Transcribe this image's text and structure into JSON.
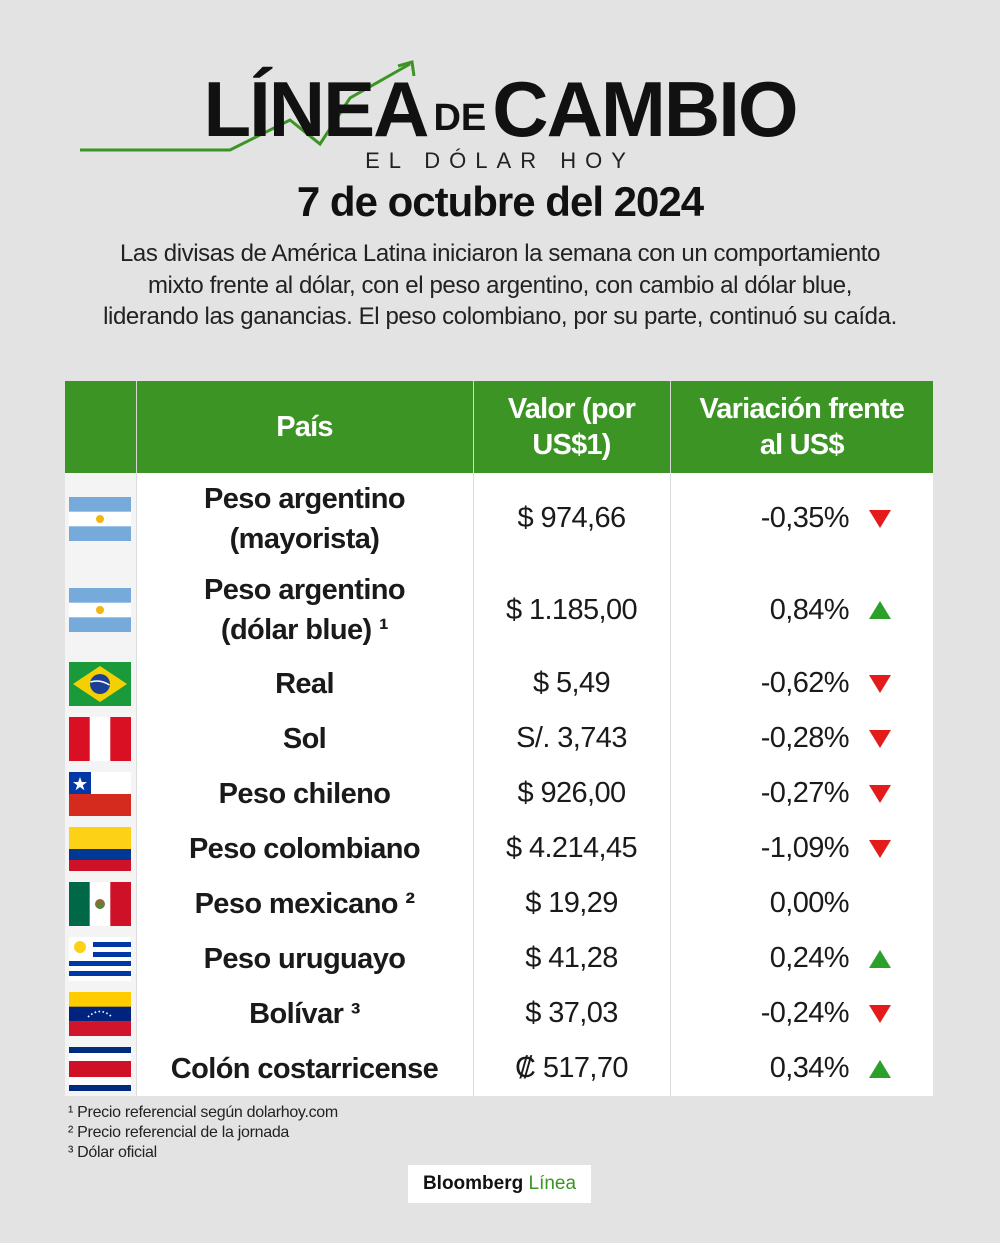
{
  "logo": {
    "line": "LÍNEA",
    "de": "DE",
    "cambio": "CAMBIO",
    "sub": "EL DÓLAR HOY"
  },
  "date": "7 de octubre del 2024",
  "intro": "Las divisas de América Latina iniciaron la semana con un comportamiento mixto frente al dólar, con el peso argentino, con cambio al dólar blue, liderando las ganancias. El peso colombiano, por su parte, continuó su caída.",
  "colors": {
    "header": "#3c9425",
    "down": "#e31b1b",
    "up": "#2aa02a"
  },
  "table": {
    "headers": {
      "country": "País",
      "value_line1": "Valor (por",
      "value_line2": "US$1)",
      "var_line1": "Variación frente",
      "var_line2": "al US$"
    },
    "rows": [
      {
        "flag": "argentina-flag",
        "name1": "Peso argentino",
        "name2": "(mayorista)",
        "value": "$ 974,66",
        "variation": "-0,35%",
        "trend": "down"
      },
      {
        "flag": "argentina-flag",
        "name1": "Peso argentino",
        "name2": "(dólar blue) ¹",
        "value": "$ 1.185,00",
        "variation": "0,84%",
        "trend": "up"
      },
      {
        "flag": "brazil-flag",
        "name1": "Real",
        "name2": "",
        "value": "$ 5,49",
        "variation": "-0,62%",
        "trend": "down"
      },
      {
        "flag": "peru-flag",
        "name1": "Sol",
        "name2": "",
        "value": "S/. 3,743",
        "variation": "-0,28%",
        "trend": "down"
      },
      {
        "flag": "chile-flag",
        "name1": "Peso chileno",
        "name2": "",
        "value": "$ 926,00",
        "variation": "-0,27%",
        "trend": "down"
      },
      {
        "flag": "colombia-flag",
        "name1": "Peso colombiano",
        "name2": "",
        "value": "$ 4.214,45",
        "variation": "-1,09%",
        "trend": "down"
      },
      {
        "flag": "mexico-flag",
        "name1": "Peso mexicano ²",
        "name2": "",
        "value": "$ 19,29",
        "variation": "0,00%",
        "trend": "none"
      },
      {
        "flag": "uruguay-flag",
        "name1": "Peso uruguayo",
        "name2": "",
        "value": "$ 41,28",
        "variation": "0,24%",
        "trend": "up"
      },
      {
        "flag": "venezuela-flag",
        "name1": "Bolívar ³",
        "name2": "",
        "value": "$ 37,03",
        "variation": "-0,24%",
        "trend": "down"
      },
      {
        "flag": "costa-rica-flag",
        "name1": "Colón costarricense",
        "name2": "",
        "value": "₡ 517,70",
        "variation": "0,34%",
        "trend": "up"
      }
    ]
  },
  "notes": [
    "¹ Precio referencial según dolarhoy.com",
    "² Precio referencial de la jornada",
    "³ Dólar oficial"
  ],
  "brand": {
    "main": "Bloomberg",
    "accent": "Línea"
  }
}
